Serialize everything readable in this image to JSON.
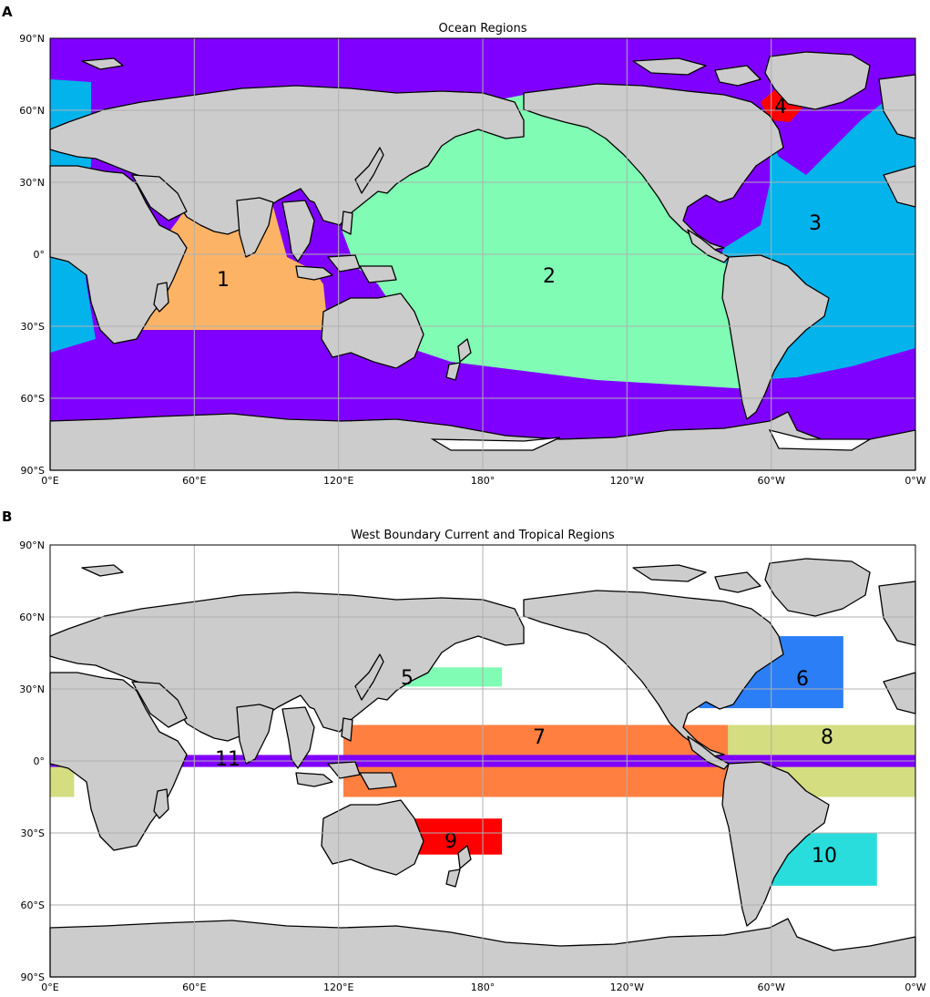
{
  "panels": [
    {
      "letter": "A",
      "title": "Ocean Regions",
      "x_ticks": [
        "0°E",
        "60°E",
        "120°E",
        "180°",
        "120°W",
        "60°W",
        "0°W"
      ],
      "y_ticks": [
        "90°N",
        "60°N",
        "30°N",
        "0°",
        "30°S",
        "60°S",
        "90°S"
      ],
      "regions": [
        {
          "label": "1",
          "color": "#fdb366"
        },
        {
          "label": "2",
          "color": "#80fcb4"
        },
        {
          "label": "3",
          "color": "#03b3ec"
        },
        {
          "label": "4",
          "color": "#ff0000"
        }
      ],
      "other_ocean_color": "#8000ff"
    },
    {
      "letter": "B",
      "title": "West Boundary Current and Tropical Regions",
      "x_ticks": [
        "0°E",
        "60°E",
        "120°E",
        "180°",
        "120°W",
        "60°W",
        "0°W"
      ],
      "y_ticks": [
        "90°N",
        "60°N",
        "30°N",
        "0°",
        "30°S",
        "60°S",
        "90°S"
      ],
      "regions": [
        {
          "label": "5",
          "color": "#80fcb4",
          "lon": [
            120,
            188
          ],
          "lat": [
            31,
            39
          ]
        },
        {
          "label": "6",
          "color": "#2c7ef7",
          "lon": [
            270,
            330
          ],
          "lat": [
            22,
            52
          ]
        },
        {
          "label": "7",
          "color": "#ff7f40",
          "lon": [
            122,
            282
          ],
          "lat": [
            -15,
            15
          ]
        },
        {
          "label": "8",
          "color": "#d4dd80",
          "lon": [
            280,
            360
          ],
          "lat": [
            -15,
            15
          ]
        },
        {
          "label": "9",
          "color": "#ff0000",
          "lon": [
            148,
            188
          ],
          "lat": [
            -39,
            -24
          ]
        },
        {
          "label": "10",
          "color": "#2adddd",
          "lon": [
            295,
            344
          ],
          "lat": [
            -52,
            -30
          ]
        },
        {
          "label": "11",
          "color": "#8000ff",
          "lon": [
            0,
            360
          ],
          "lat": [
            -2.5,
            2.5
          ]
        }
      ]
    }
  ],
  "colors": {
    "land": "#cccccc",
    "grid": "#b0b0b0"
  }
}
